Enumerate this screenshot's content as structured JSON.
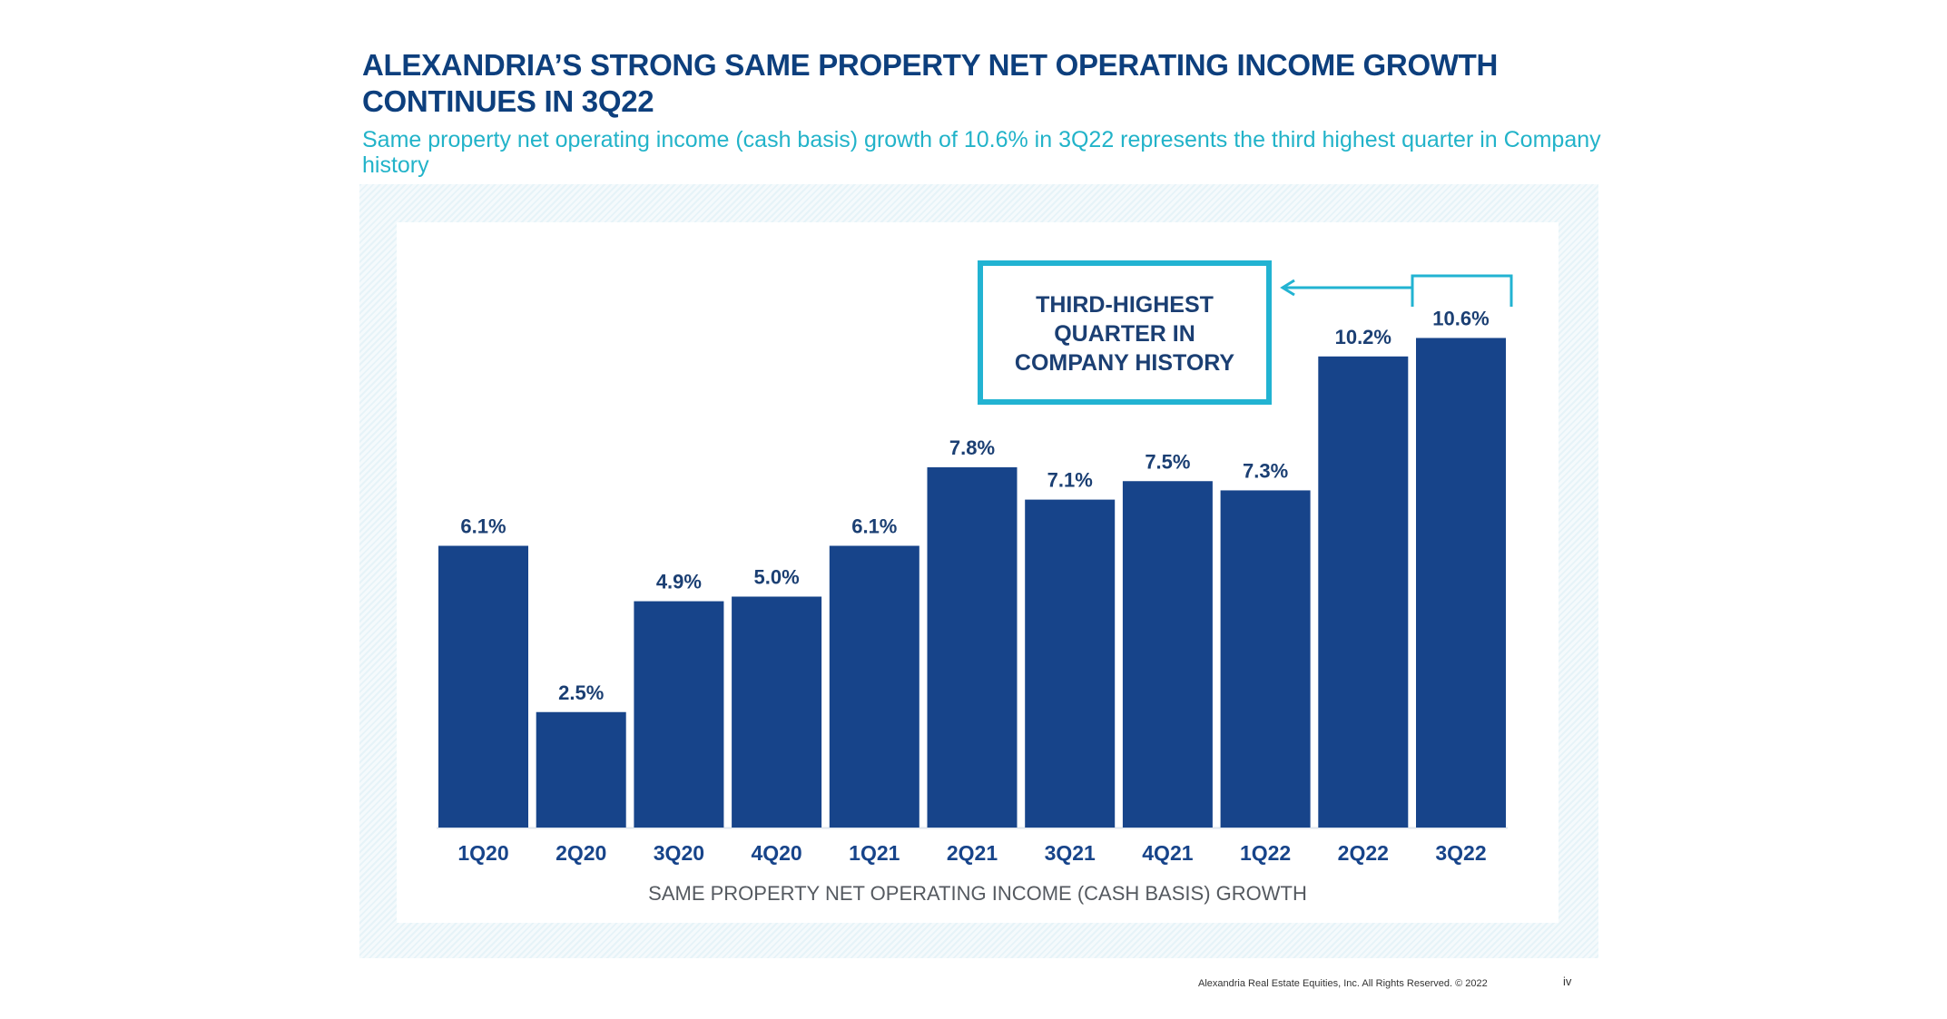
{
  "header": {
    "title": "ALEXANDRIA’S STRONG SAME PROPERTY NET OPERATING INCOME GROWTH CONTINUES IN 3Q22",
    "subtitle": "Same property net operating income (cash basis) growth of 10.6% in 3Q22 represents the third highest quarter in Company history"
  },
  "chart_data": {
    "type": "bar",
    "categories": [
      "1Q20",
      "2Q20",
      "3Q20",
      "4Q20",
      "1Q21",
      "2Q21",
      "3Q21",
      "4Q21",
      "1Q22",
      "2Q22",
      "3Q22"
    ],
    "values": [
      6.1,
      2.5,
      4.9,
      5.0,
      6.1,
      7.8,
      7.1,
      7.5,
      7.3,
      10.2,
      10.6
    ],
    "data_labels": [
      "6.1%",
      "2.5%",
      "4.9%",
      "5.0%",
      "6.1%",
      "7.8%",
      "7.1%",
      "7.5%",
      "7.3%",
      "10.2%",
      "10.6%"
    ],
    "xlabel": "SAME PROPERTY NET OPERATING INCOME (CASH BASIS) GROWTH",
    "ylabel": "",
    "ylim": [
      0,
      12
    ],
    "grid": false,
    "bar_color": "#17448a",
    "annotation": {
      "lines": [
        "THIRD-HIGHEST",
        "QUARTER IN",
        "COMPANY HISTORY"
      ],
      "color": "#22b3d2",
      "target": "3Q22"
    }
  },
  "footer": {
    "copyright": "Alexandria Real Estate Equities, Inc. All Rights Reserved. © 2022",
    "page": "iv"
  }
}
